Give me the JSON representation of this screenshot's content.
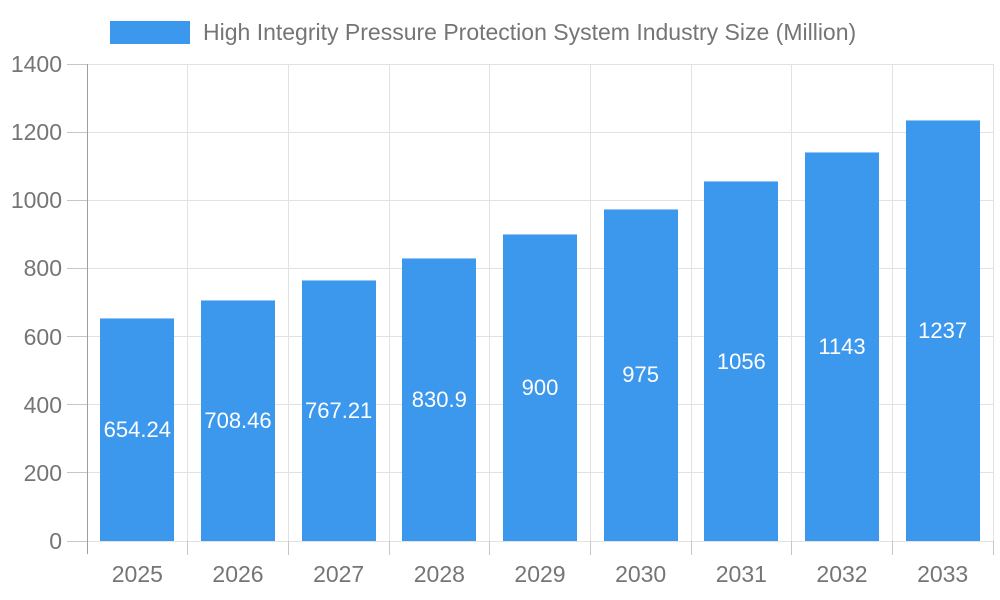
{
  "chart_data": {
    "type": "bar",
    "title": "High Integrity Pressure Protection System Industry Size (Million)",
    "categories": [
      "2025",
      "2026",
      "2027",
      "2028",
      "2029",
      "2030",
      "2031",
      "2032",
      "2033"
    ],
    "values": [
      654.24,
      708.46,
      767.21,
      830.9,
      900,
      975,
      1056,
      1143,
      1237
    ],
    "value_labels": [
      "654.24",
      "708.46",
      "767.21",
      "830.9",
      "900",
      "975",
      "1056",
      "1143",
      "1237"
    ],
    "xlabel": "",
    "ylabel": "",
    "ylim": [
      0,
      1400
    ],
    "ytick_step": 200,
    "ytick_labels": [
      "0",
      "200",
      "400",
      "600",
      "800",
      "1000",
      "1200",
      "1400"
    ],
    "grid": true,
    "legend_position": "top",
    "colors": {
      "bar": "#3b98ec",
      "grid_line": "#e2e2e2",
      "axis_line": "#9e9e9e",
      "tick_line": "#c6c6c6",
      "label_text": "#757575",
      "value_text": "#ffffff",
      "background": "#ffffff"
    }
  }
}
